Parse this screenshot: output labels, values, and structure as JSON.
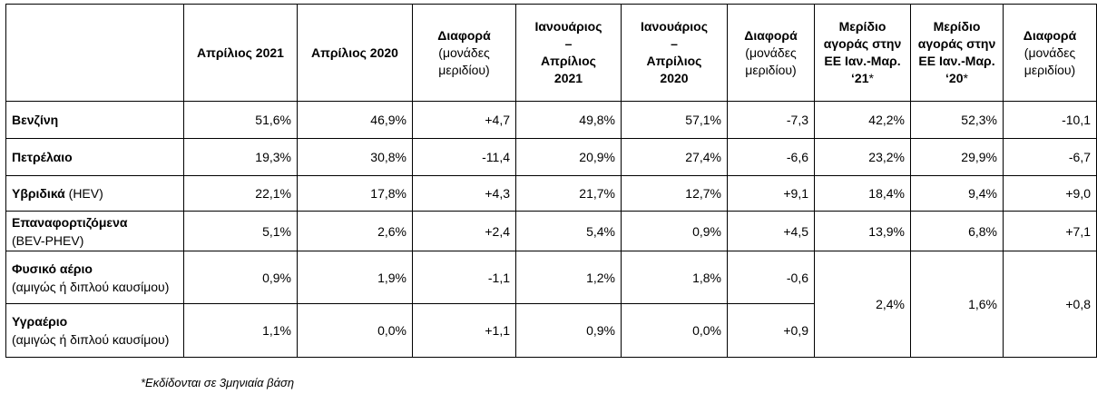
{
  "headers": {
    "apr2021": "Απρίλιος 2021",
    "apr2020": "Απρίλιος 2020",
    "diff1_title": "Διαφορά",
    "diff1_sub": "(μονάδες μεριδίου)",
    "jan_apr2021_l1": "Ιανουάριος",
    "jan_apr2021_l2": "–",
    "jan_apr2021_l3": "Απρίλιος",
    "jan_apr2021_l4": "2021",
    "jan_apr2020_l1": "Ιανουάριος",
    "jan_apr2020_l2": "–",
    "jan_apr2020_l3": "Απρίλιος",
    "jan_apr2020_l4": "2020",
    "diff2_title": "Διαφορά",
    "diff2_sub": "(μονάδες μεριδίου)",
    "eu21_title": "Μερίδιο αγοράς στην ΕΕ Ιαν.-Μαρ. ‘21",
    "eu21_star": "*",
    "eu20_title": "Μερίδιο αγοράς στην ΕΕ Ιαν.-Μαρ. ‘20",
    "eu20_star": "*",
    "diff3_title": "Διαφορά",
    "diff3_sub": "(μονάδες μεριδίου)"
  },
  "rows": [
    {
      "label": "Βενζίνη",
      "note": "",
      "values": [
        "51,6%",
        "46,9%",
        "+4,7",
        "49,8%",
        "57,1%",
        "-7,3",
        "42,2%",
        "52,3%",
        "-10,1"
      ]
    },
    {
      "label": "Πετρέλαιο",
      "note": "",
      "values": [
        "19,3%",
        "30,8%",
        "-11,4",
        "20,9%",
        "27,4%",
        "-6,6",
        "23,2%",
        "29,9%",
        "-6,7"
      ]
    },
    {
      "label": "Υβριδικά",
      "note": " (HEV)",
      "values": [
        "22,1%",
        "17,8%",
        "+4,3",
        "21,7%",
        "12,7%",
        "+9,1",
        "18,4%",
        "9,4%",
        "+9,0"
      ]
    },
    {
      "label": "Επαναφορτιζόμενα",
      "note": "(BEV-PHEV)",
      "values": [
        "5,1%",
        "2,6%",
        "+2,4",
        "5,4%",
        "0,9%",
        "+4,5",
        "13,9%",
        "6,8%",
        "+7,1"
      ]
    },
    {
      "label": "Φυσικό αέριο",
      "note": "(αμιγώς ή διπλού καυσίμου)",
      "values": [
        "0,9%",
        "1,9%",
        "-1,1",
        "1,2%",
        "1,8%",
        "-0,6"
      ]
    },
    {
      "label": "Υγραέριο",
      "note": "(αμιγώς ή διπλού καυσίμου)",
      "values": [
        "1,1%",
        "0,0%",
        "+1,1",
        "0,9%",
        "0,0%",
        "+0,9"
      ]
    }
  ],
  "merged": {
    "eu21": "2,4%",
    "eu20": "1,6%",
    "diff": "+0,8"
  },
  "footnote": "*Εκδίδονται σε 3μηνιαία βάση"
}
